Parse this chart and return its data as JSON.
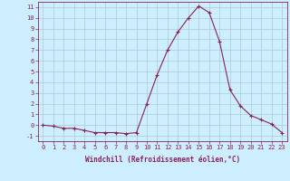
{
  "x": [
    0,
    1,
    2,
    3,
    4,
    5,
    6,
    7,
    8,
    9,
    10,
    11,
    12,
    13,
    14,
    15,
    16,
    17,
    18,
    19,
    20,
    21,
    22,
    23
  ],
  "y": [
    0,
    -0.1,
    -0.3,
    -0.3,
    -0.5,
    -0.7,
    -0.7,
    -0.7,
    -0.8,
    -0.7,
    2.0,
    4.7,
    7.0,
    8.7,
    10.0,
    11.1,
    10.5,
    7.8,
    3.3,
    1.8,
    0.9,
    0.5,
    0.1,
    -0.7
  ],
  "line_color": "#882255",
  "marker": "+",
  "marker_size": 3.5,
  "bg_color": "#cceeff",
  "grid_color": "#aacccc",
  "axis_color": "#882255",
  "tick_color": "#882255",
  "xlabel": "Windchill (Refroidissement éolien,°C)",
  "ylabel_ticks": [
    -1,
    0,
    1,
    2,
    3,
    4,
    5,
    6,
    7,
    8,
    9,
    10,
    11
  ],
  "xlim": [
    -0.5,
    23.5
  ],
  "ylim": [
    -1.5,
    11.5
  ],
  "xticks": [
    0,
    1,
    2,
    3,
    4,
    5,
    6,
    7,
    8,
    9,
    10,
    11,
    12,
    13,
    14,
    15,
    16,
    17,
    18,
    19,
    20,
    21,
    22,
    23
  ],
  "font_size_label": 5.5,
  "font_size_tick": 5.0
}
